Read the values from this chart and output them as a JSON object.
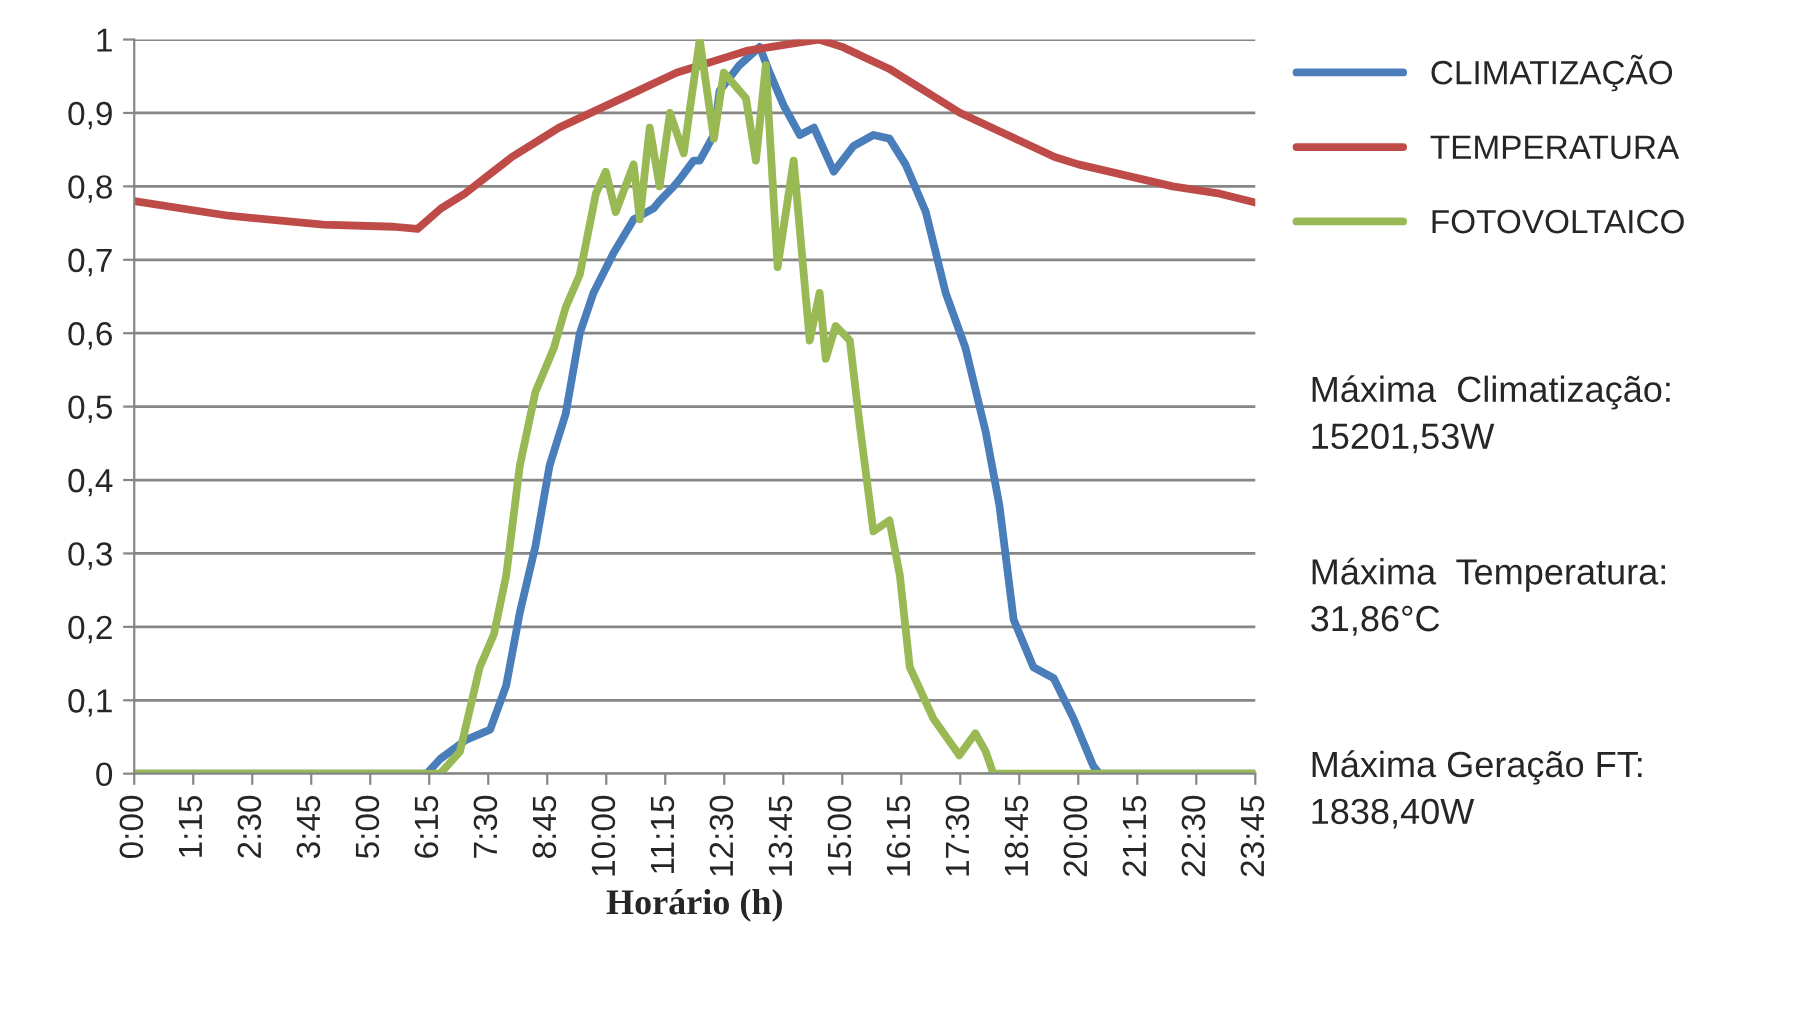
{
  "chart_data": {
    "type": "line",
    "xlabel": "Horário (h)",
    "xlim": [
      0,
      23.75
    ],
    "xticks": [
      {
        "value": 0,
        "label": "0:00"
      },
      {
        "value": 1.25,
        "label": "1:15"
      },
      {
        "value": 2.5,
        "label": "2:30"
      },
      {
        "value": 3.75,
        "label": "3:45"
      },
      {
        "value": 5,
        "label": "5:00"
      },
      {
        "value": 6.25,
        "label": "6:15"
      },
      {
        "value": 7.5,
        "label": "7:30"
      },
      {
        "value": 8.75,
        "label": "8:45"
      },
      {
        "value": 10,
        "label": "10:00"
      },
      {
        "value": 11.25,
        "label": "11:15"
      },
      {
        "value": 12.5,
        "label": "12:30"
      },
      {
        "value": 13.75,
        "label": "13:45"
      },
      {
        "value": 15,
        "label": "15:00"
      },
      {
        "value": 16.25,
        "label": "16:15"
      },
      {
        "value": 17.5,
        "label": "17:30"
      },
      {
        "value": 18.75,
        "label": "18:45"
      },
      {
        "value": 20,
        "label": "20:00"
      },
      {
        "value": 21.25,
        "label": "21:15"
      },
      {
        "value": 22.5,
        "label": "22:30"
      },
      {
        "value": 23.75,
        "label": "23:45"
      }
    ],
    "ylim": [
      0,
      1
    ],
    "yticks": [
      0,
      {
        "value": 0.1,
        "label": "0,1"
      },
      {
        "value": 0.2,
        "label": "0,2"
      },
      {
        "value": 0.3,
        "label": "0,3"
      },
      {
        "value": 0.4,
        "label": "0,4"
      },
      {
        "value": 0.5,
        "label": "0,5"
      },
      {
        "value": 0.6,
        "label": "0,6"
      },
      {
        "value": 0.7,
        "label": "0,7"
      },
      {
        "value": 0.8,
        "label": "0,8"
      },
      {
        "value": 0.9,
        "label": "0,9"
      },
      1
    ],
    "grid": "y",
    "legend": "top right",
    "marker": "none",
    "line_style": "solid",
    "series": [
      {
        "name": "CLIMATIZAÇÃO",
        "color": "#4a7ebb",
        "x": [
          0,
          6.2,
          6.48,
          7.03,
          7.54,
          7.88,
          8.17,
          8.5,
          8.8,
          9.14,
          9.44,
          9.73,
          10.16,
          10.58,
          11.0,
          11.13,
          11.43,
          11.56,
          11.85,
          11.98,
          12.28,
          12.4,
          12.82,
          13.25,
          13.46,
          13.76,
          14.1,
          14.4,
          14.82,
          15.24,
          15.66,
          16.0,
          16.34,
          16.77,
          17.19,
          17.61,
          18.04,
          18.33,
          18.63,
          19.05,
          19.48,
          19.9,
          20.32,
          20.45,
          23.75
        ],
        "values": [
          0,
          0,
          0.02,
          0.046,
          0.06,
          0.12,
          0.22,
          0.31,
          0.42,
          0.49,
          0.6,
          0.655,
          0.71,
          0.755,
          0.77,
          0.78,
          0.8,
          0.81,
          0.835,
          0.835,
          0.87,
          0.93,
          0.965,
          0.99,
          0.955,
          0.91,
          0.87,
          0.88,
          0.82,
          0.855,
          0.87,
          0.865,
          0.83,
          0.765,
          0.655,
          0.58,
          0.465,
          0.365,
          0.21,
          0.145,
          0.13,
          0.075,
          0.01,
          0,
          0
        ]
      },
      {
        "name": "TEMPERATURA",
        "color": "#be4b48",
        "x": [
          0,
          2,
          4,
          5.5,
          6.0,
          6.5,
          7,
          7.5,
          8,
          8.5,
          9,
          9.5,
          10,
          10.5,
          11,
          11.5,
          12,
          12.5,
          13,
          13.5,
          14,
          14.5,
          15,
          15.5,
          16,
          16.5,
          17,
          17.5,
          18,
          18.5,
          19,
          19.5,
          20,
          21,
          22,
          23,
          23.75
        ],
        "values": [
          0.78,
          0.76,
          0.748,
          0.745,
          0.742,
          0.77,
          0.79,
          0.815,
          0.84,
          0.86,
          0.88,
          0.895,
          0.91,
          0.925,
          0.94,
          0.955,
          0.965,
          0.975,
          0.985,
          0.99,
          0.995,
          1.0,
          0.99,
          0.975,
          0.96,
          0.94,
          0.92,
          0.9,
          0.885,
          0.87,
          0.855,
          0.84,
          0.83,
          0.815,
          0.8,
          0.79,
          0.778
        ]
      },
      {
        "name": "FOTOVOLTAICO",
        "color": "#98b954",
        "x": [
          0,
          6.3,
          6.48,
          6.9,
          7.32,
          7.62,
          7.88,
          8.17,
          8.5,
          8.89,
          9.14,
          9.44,
          9.78,
          9.99,
          10.2,
          10.58,
          10.71,
          10.92,
          11.13,
          11.35,
          11.64,
          11.98,
          12.28,
          12.49,
          12.96,
          13.17,
          13.38,
          13.63,
          13.97,
          14.31,
          14.52,
          14.65,
          14.86,
          15.16,
          15.37,
          15.66,
          16.0,
          16.22,
          16.43,
          16.93,
          17.48,
          17.82,
          18.04,
          18.2,
          23.75
        ],
        "values": [
          0,
          0,
          0,
          0.03,
          0.145,
          0.19,
          0.27,
          0.42,
          0.52,
          0.58,
          0.635,
          0.68,
          0.79,
          0.82,
          0.765,
          0.83,
          0.755,
          0.88,
          0.8,
          0.9,
          0.845,
          1.0,
          0.865,
          0.955,
          0.92,
          0.835,
          0.965,
          0.69,
          0.835,
          0.59,
          0.655,
          0.565,
          0.61,
          0.59,
          0.475,
          0.33,
          0.345,
          0.27,
          0.145,
          0.075,
          0.025,
          0.055,
          0.03,
          0,
          0
        ]
      }
    ],
    "annotations": [
      "Máxima  Climatização:\n15201,53W",
      "Máxima  Temperatura:\n31,86°C",
      "Máxima Geração FT:\n1838,40W"
    ]
  }
}
